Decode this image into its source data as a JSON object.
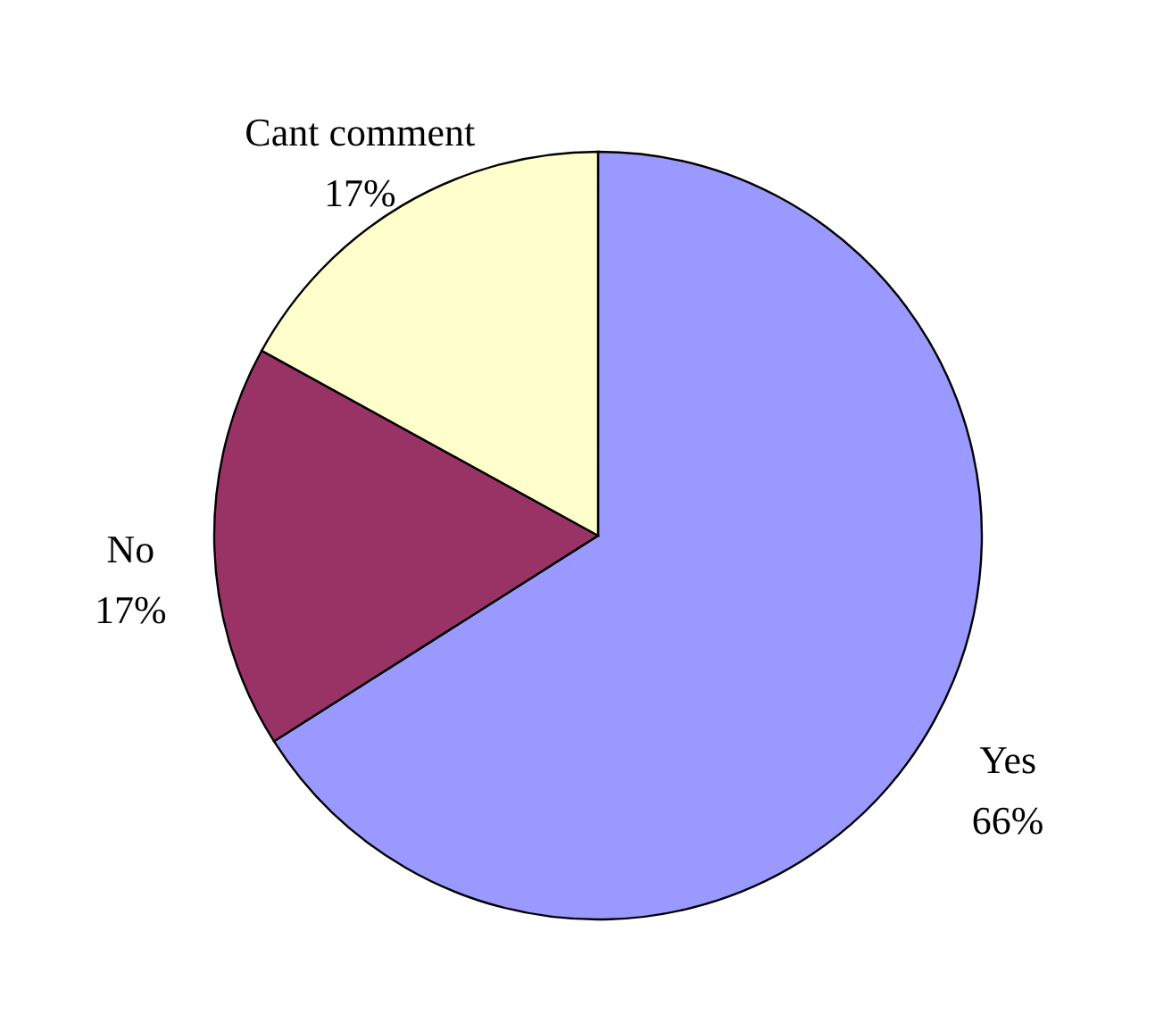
{
  "chart_data": {
    "type": "pie",
    "categories": [
      "Yes",
      "No",
      "Cant comment"
    ],
    "values": [
      66,
      17,
      17
    ],
    "value_labels": [
      "66%",
      "17%",
      "17%"
    ],
    "colors": [
      "#9999ff",
      "#993366",
      "#ffffcc"
    ]
  }
}
